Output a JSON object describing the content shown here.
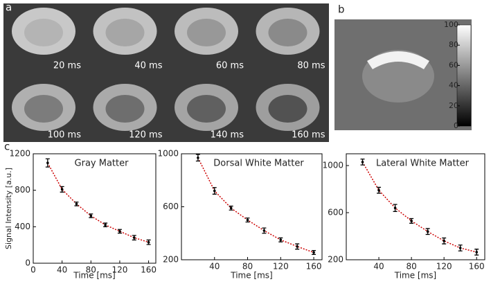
{
  "panel_labels": [
    "a",
    "b",
    "c"
  ],
  "images": {
    "labels": [
      "20 ms",
      "40 ms",
      "60 ms",
      "80 ms",
      "100 ms",
      "120 ms",
      "140 ms",
      "160 ms"
    ]
  },
  "colorbar": {
    "lim": [
      0,
      100
    ],
    "ticks": [
      0,
      20,
      40,
      60,
      80,
      100
    ]
  },
  "chart_data": [
    {
      "type": "line",
      "title": "Gray Matter",
      "ylabel": "Signal Intensity [a.u.]",
      "xlabel": "Time [ms]",
      "x": [
        20,
        40,
        60,
        80,
        100,
        120,
        140,
        160
      ],
      "xlim": [
        0,
        170
      ],
      "xticks": [
        0,
        40,
        80,
        120,
        160
      ],
      "ylim": [
        0,
        1200
      ],
      "yticks": [
        0,
        400,
        800,
        1200
      ],
      "series": [
        {
          "color": "#000000",
          "fit_color": "#cc0000",
          "values": [
            1100,
            810,
            650,
            520,
            420,
            350,
            280,
            230
          ],
          "errors": [
            45,
            30,
            20,
            20,
            20,
            20,
            25,
            25
          ]
        }
      ]
    },
    {
      "type": "line",
      "title": "Dorsal White Matter",
      "xlabel": "Time [ms]",
      "x": [
        20,
        40,
        60,
        80,
        100,
        120,
        140,
        160
      ],
      "xlim": [
        0,
        170
      ],
      "xticks": [
        40,
        80,
        120,
        160
      ],
      "ylim": [
        200,
        1000
      ],
      "yticks": [
        200,
        600,
        1000
      ],
      "series": [
        {
          "color": "#000000",
          "fit_color": "#cc0000",
          "values": [
            970,
            720,
            590,
            500,
            420,
            350,
            300,
            255
          ],
          "errors": [
            25,
            25,
            15,
            15,
            20,
            15,
            20,
            15
          ]
        }
      ]
    },
    {
      "type": "line",
      "title": "Lateral White Matter",
      "xlabel": "Time [ms]",
      "x": [
        20,
        40,
        60,
        80,
        100,
        120,
        140,
        160
      ],
      "xlim": [
        0,
        170
      ],
      "xticks": [
        40,
        80,
        120,
        160
      ],
      "ylim": [
        200,
        1100
      ],
      "yticks": [
        200,
        600,
        1000
      ],
      "series": [
        {
          "color": "#000000",
          "fit_color": "#cc0000",
          "values": [
            1030,
            790,
            640,
            530,
            440,
            360,
            300,
            265
          ],
          "errors": [
            25,
            25,
            30,
            20,
            25,
            25,
            25,
            25
          ]
        }
      ]
    }
  ]
}
